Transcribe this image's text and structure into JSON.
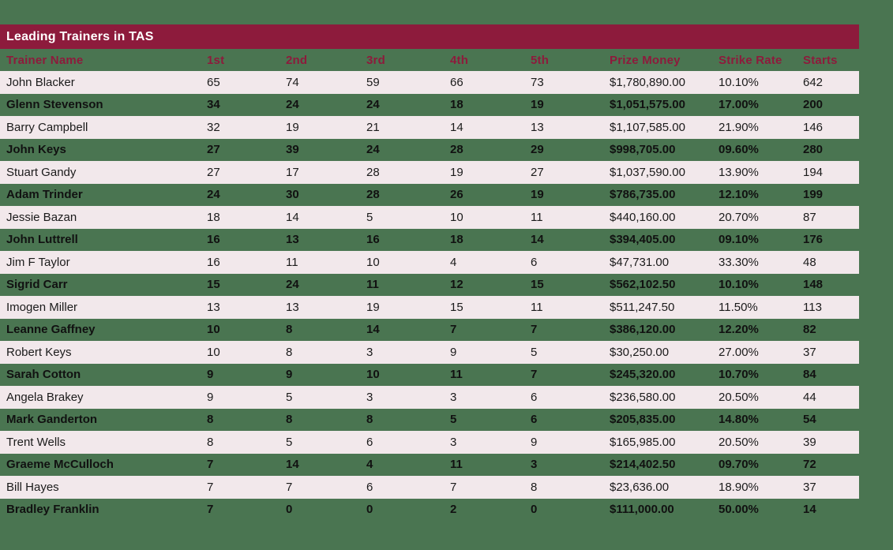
{
  "title": "Leading Trainers in TAS",
  "colors": {
    "background_green": "#4A7551",
    "accent_maroon": "#8D1B3C",
    "row_pink": "#F2E8EB",
    "title_text": "#FFFFFF",
    "data_text": "#1B1B1B"
  },
  "chart_data": {
    "type": "table",
    "title": "Leading Trainers in TAS",
    "columns": [
      "Trainer Name",
      "1st",
      "2nd",
      "3rd",
      "4th",
      "5th",
      "Prize Money",
      "Strike Rate",
      "Starts"
    ],
    "rows": [
      [
        "John Blacker",
        "65",
        "74",
        "59",
        "66",
        "73",
        "$1,780,890.00",
        "10.10%",
        "642"
      ],
      [
        "Glenn Stevenson",
        "34",
        "24",
        "24",
        "18",
        "19",
        "$1,051,575.00",
        "17.00%",
        "200"
      ],
      [
        "Barry Campbell",
        "32",
        "19",
        "21",
        "14",
        "13",
        "$1,107,585.00",
        "21.90%",
        "146"
      ],
      [
        "John Keys",
        "27",
        "39",
        "24",
        "28",
        "29",
        "$998,705.00",
        "09.60%",
        "280"
      ],
      [
        "Stuart Gandy",
        "27",
        "17",
        "28",
        "19",
        "27",
        "$1,037,590.00",
        "13.90%",
        "194"
      ],
      [
        "Adam Trinder",
        "24",
        "30",
        "28",
        "26",
        "19",
        "$786,735.00",
        "12.10%",
        "199"
      ],
      [
        "Jessie Bazan",
        "18",
        "14",
        "5",
        "10",
        "11",
        "$440,160.00",
        "20.70%",
        "87"
      ],
      [
        "John Luttrell",
        "16",
        "13",
        "16",
        "18",
        "14",
        "$394,405.00",
        "09.10%",
        "176"
      ],
      [
        "Jim F Taylor",
        "16",
        "11",
        "10",
        "4",
        "6",
        "$47,731.00",
        "33.30%",
        "48"
      ],
      [
        "Sigrid Carr",
        "15",
        "24",
        "11",
        "12",
        "15",
        "$562,102.50",
        "10.10%",
        "148"
      ],
      [
        "Imogen Miller",
        "13",
        "13",
        "19",
        "15",
        "11",
        "$511,247.50",
        "11.50%",
        "113"
      ],
      [
        "Leanne Gaffney",
        "10",
        "8",
        "14",
        "7",
        "7",
        "$386,120.00",
        "12.20%",
        "82"
      ],
      [
        "Robert Keys",
        "10",
        "8",
        "3",
        "9",
        "5",
        "$30,250.00",
        "27.00%",
        "37"
      ],
      [
        "Sarah Cotton",
        "9",
        "9",
        "10",
        "11",
        "7",
        "$245,320.00",
        "10.70%",
        "84"
      ],
      [
        "Angela Brakey",
        "9",
        "5",
        "3",
        "3",
        "6",
        "$236,580.00",
        "20.50%",
        "44"
      ],
      [
        "Mark Ganderton",
        "8",
        "8",
        "8",
        "5",
        "6",
        "$205,835.00",
        "14.80%",
        "54"
      ],
      [
        "Trent Wells",
        "8",
        "5",
        "6",
        "3",
        "9",
        "$165,985.00",
        "20.50%",
        "39"
      ],
      [
        "Graeme McCulloch",
        "7",
        "14",
        "4",
        "11",
        "3",
        "$214,402.50",
        "09.70%",
        "72"
      ],
      [
        "Bill Hayes",
        "7",
        "7",
        "6",
        "7",
        "8",
        "$23,636.00",
        "18.90%",
        "37"
      ],
      [
        "Bradley Franklin",
        "7",
        "0",
        "0",
        "2",
        "0",
        "$111,000.00",
        "50.00%",
        "14"
      ]
    ]
  }
}
